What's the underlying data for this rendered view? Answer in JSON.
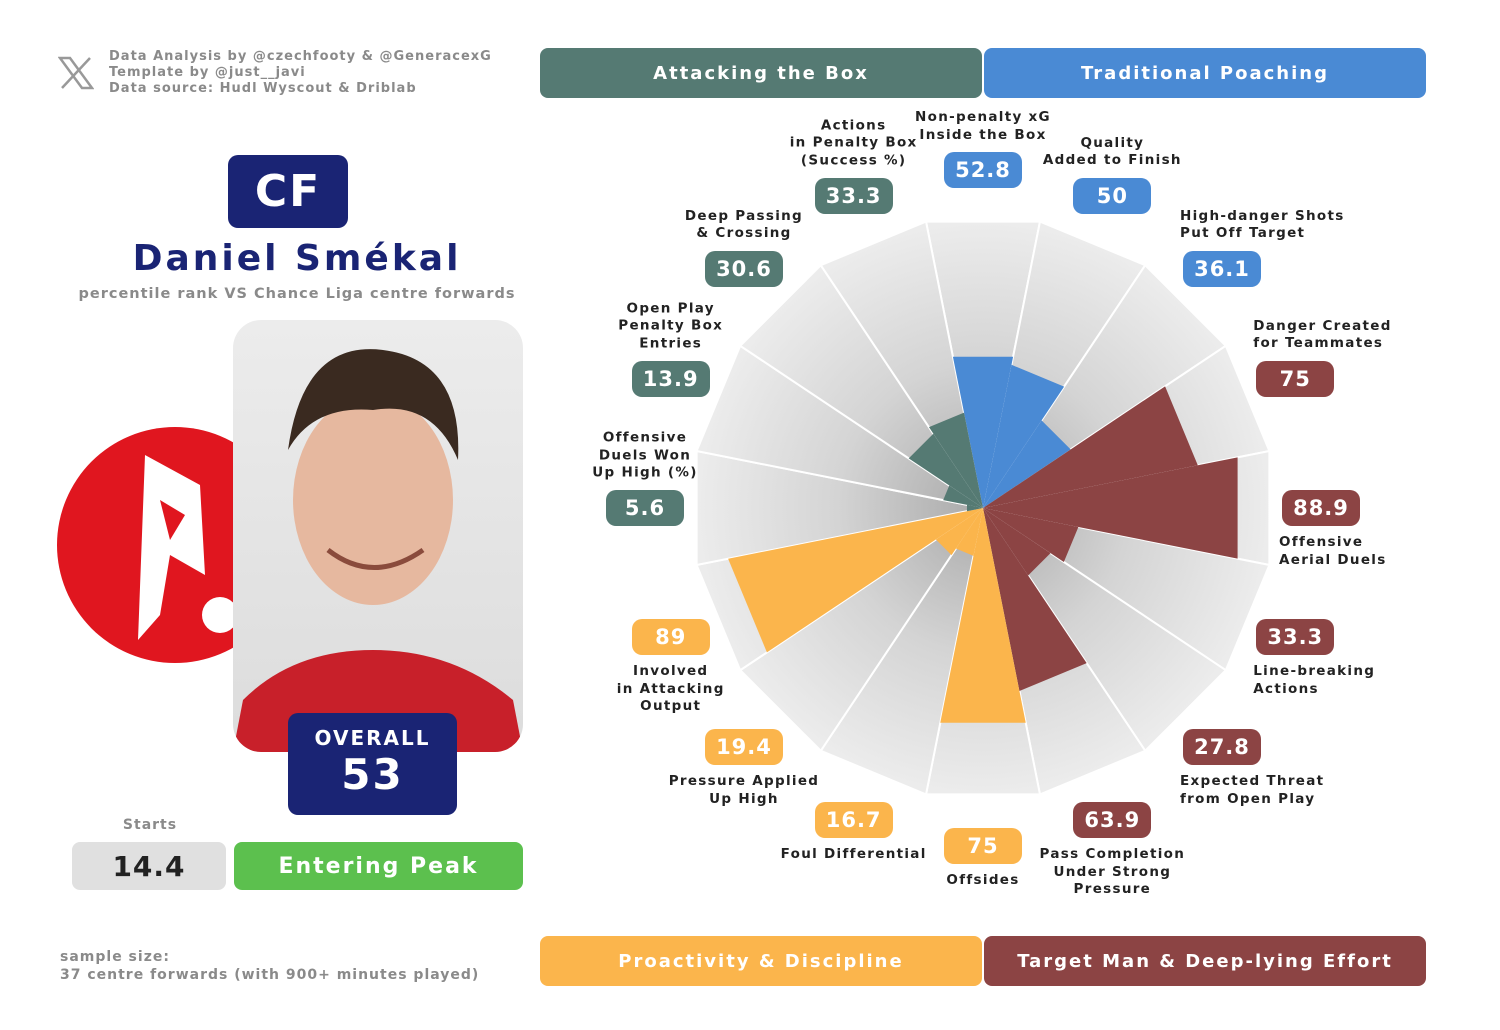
{
  "header": {
    "credits": [
      "Data Analysis by @czechfooty & @GeneracexG",
      "Template by @just__javi",
      "Data source: Hudl Wyscout & Driblab"
    ]
  },
  "player": {
    "position": "CF",
    "name": "Daniel Smékal",
    "subtitle": "percentile rank VS Chance Liga centre forwards",
    "overall_label": "OVERALL",
    "overall": 53,
    "starts_label": "Starts",
    "starts": 14.4,
    "stage": "Entering Peak"
  },
  "footer": {
    "sample_label": "sample size:",
    "sample_text": "37 centre forwards (with 900+ minutes played)"
  },
  "chart_data": {
    "type": "polar-bar",
    "ylim": [
      0,
      100
    ],
    "groups": [
      {
        "name": "Attacking the Box",
        "color": "#557a73"
      },
      {
        "name": "Traditional Poaching",
        "color": "#4a8ad4"
      },
      {
        "name": "Proactivity & Discipline",
        "color": "#fbb54c"
      },
      {
        "name": "Target Man & Deep-lying Effort",
        "color": "#8c4444"
      }
    ],
    "categories": [
      "Non-penalty xG\nInside the Box",
      "Quality\nAdded to Finish",
      "High-danger Shots\nPut Off Target",
      "Danger Created\nfor Teammates",
      "Offensive\nAerial Duels",
      "Line-breaking\nActions",
      "Expected Threat\nfrom Open Play",
      "Pass Completion\nUnder Strong\nPressure",
      "Offsides",
      "Foul Differential",
      "Pressure Applied\nUp High",
      "Involved\nin Attacking\nOutput",
      "Offensive\nDuels Won\nUp High (%)",
      "Open Play\nPenalty Box\nEntries",
      "Deep Passing\n& Crossing",
      "Actions\nin Penalty Box\n(Success %)"
    ],
    "values": [
      52.8,
      50,
      36.1,
      75,
      88.9,
      33.3,
      27.8,
      63.9,
      75,
      16.7,
      19.4,
      89,
      5.6,
      13.9,
      30.6,
      33.3
    ],
    "colors": [
      "#4a8ad4",
      "#4a8ad4",
      "#4a8ad4",
      "#8c4444",
      "#8c4444",
      "#8c4444",
      "#8c4444",
      "#8c4444",
      "#fbb54c",
      "#fbb54c",
      "#fbb54c",
      "#fbb54c",
      "#557a73",
      "#557a73",
      "#557a73",
      "#557a73"
    ]
  }
}
